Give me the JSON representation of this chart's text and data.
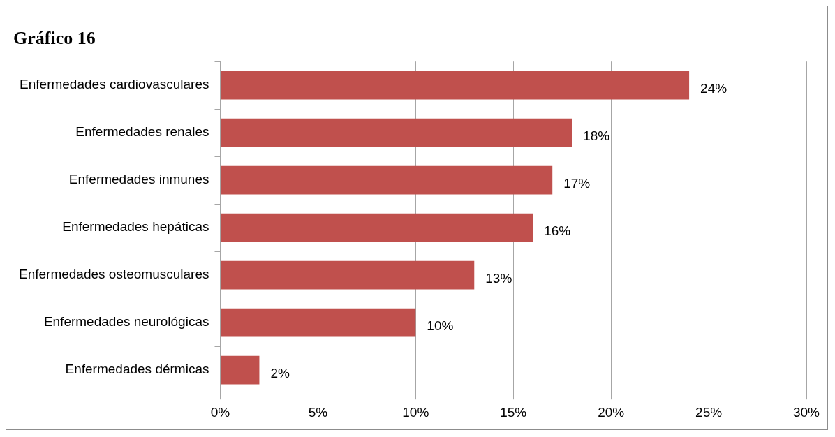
{
  "chart_data": {
    "type": "bar",
    "orientation": "horizontal",
    "title": "Gráfico 16",
    "categories": [
      "Enfermedades cardiovasculares",
      "Enfermedades renales",
      "Enfermedades inmunes",
      "Enfermedades hepáticas",
      "Enfermedades osteomusculares",
      "Enfermedades neurológicas",
      "Enfermedades dérmicas"
    ],
    "values": [
      24,
      18,
      17,
      16,
      13,
      10,
      2
    ],
    "value_labels": [
      "24%",
      "18%",
      "17%",
      "16%",
      "13%",
      "10%",
      "2%"
    ],
    "color": "#c0504d",
    "xlim": [
      0,
      30
    ],
    "xticks": [
      {
        "value": 0,
        "label": "0%"
      },
      {
        "value": 5,
        "label": "5%"
      },
      {
        "value": 10,
        "label": "10%"
      },
      {
        "value": 15,
        "label": "15%"
      },
      {
        "value": 20,
        "label": "20%"
      },
      {
        "value": 25,
        "label": "25%"
      },
      {
        "value": 30,
        "label": "30%"
      }
    ],
    "grid": "x",
    "legend": false
  }
}
